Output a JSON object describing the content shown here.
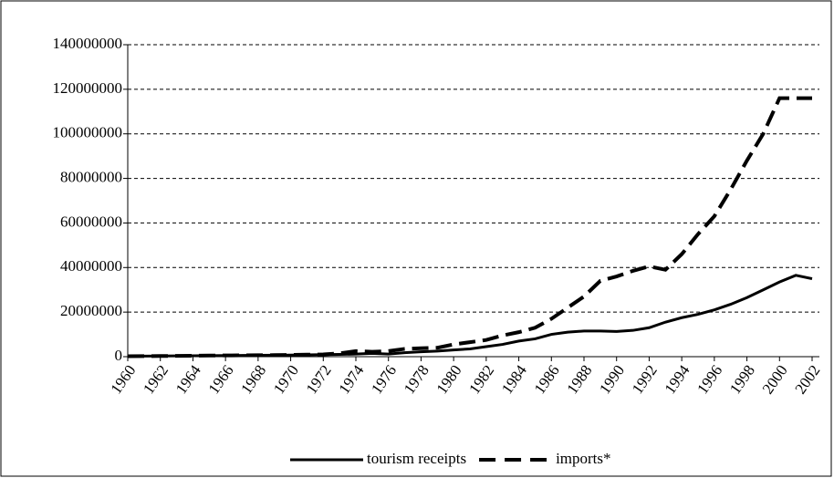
{
  "chart_data": {
    "type": "line",
    "x": [
      1960,
      1961,
      1962,
      1963,
      1964,
      1965,
      1966,
      1967,
      1968,
      1969,
      1970,
      1971,
      1972,
      1973,
      1974,
      1975,
      1976,
      1977,
      1978,
      1979,
      1980,
      1981,
      1982,
      1983,
      1984,
      1985,
      1986,
      1987,
      1988,
      1989,
      1990,
      1991,
      1992,
      1993,
      1994,
      1995,
      1996,
      1997,
      1998,
      1999,
      2000,
      2001,
      2002
    ],
    "xlim": [
      1960,
      2002
    ],
    "xticks": [
      1960,
      1962,
      1964,
      1966,
      1968,
      1970,
      1972,
      1974,
      1976,
      1978,
      1980,
      1982,
      1984,
      1986,
      1988,
      1990,
      1992,
      1994,
      1996,
      1998,
      2000,
      2002
    ],
    "series": [
      {
        "name": "tourism receipts",
        "color": "#000000",
        "line_style": "solid",
        "values": [
          200000,
          250000,
          300000,
          350000,
          400000,
          450000,
          500000,
          550000,
          600000,
          650000,
          700000,
          800000,
          900000,
          1000000,
          1200000,
          1500000,
          1200000,
          1800000,
          2200000,
          2500000,
          3000000,
          3500000,
          4500000,
          5500000,
          7000000,
          8000000,
          10000000,
          11000000,
          11500000,
          11500000,
          11300000,
          11800000,
          13000000,
          15500000,
          17500000,
          19000000,
          21000000,
          23500000,
          26500000,
          30000000,
          33500000,
          36500000,
          35000000
        ]
      },
      {
        "name": "imports*",
        "color": "#000000",
        "line_style": "dashed",
        "values": [
          200000,
          250000,
          300000,
          350000,
          400000,
          500000,
          550000,
          600000,
          650000,
          700000,
          800000,
          900000,
          1000000,
          1500000,
          2500000,
          2200000,
          2500000,
          3500000,
          3800000,
          4000000,
          5500000,
          6500000,
          7500000,
          9500000,
          11000000,
          13000000,
          17000000,
          22000000,
          27000000,
          34000000,
          36000000,
          38500000,
          40500000,
          39000000,
          46000000,
          55000000,
          63000000,
          75000000,
          88000000,
          100000000,
          116000000,
          116000000,
          116000000
        ]
      }
    ],
    "ylim": [
      0,
      140000000
    ],
    "yticks": [
      0,
      20000000,
      40000000,
      60000000,
      80000000,
      100000000,
      120000000,
      140000000
    ],
    "grid": true,
    "legend": "bottom"
  }
}
